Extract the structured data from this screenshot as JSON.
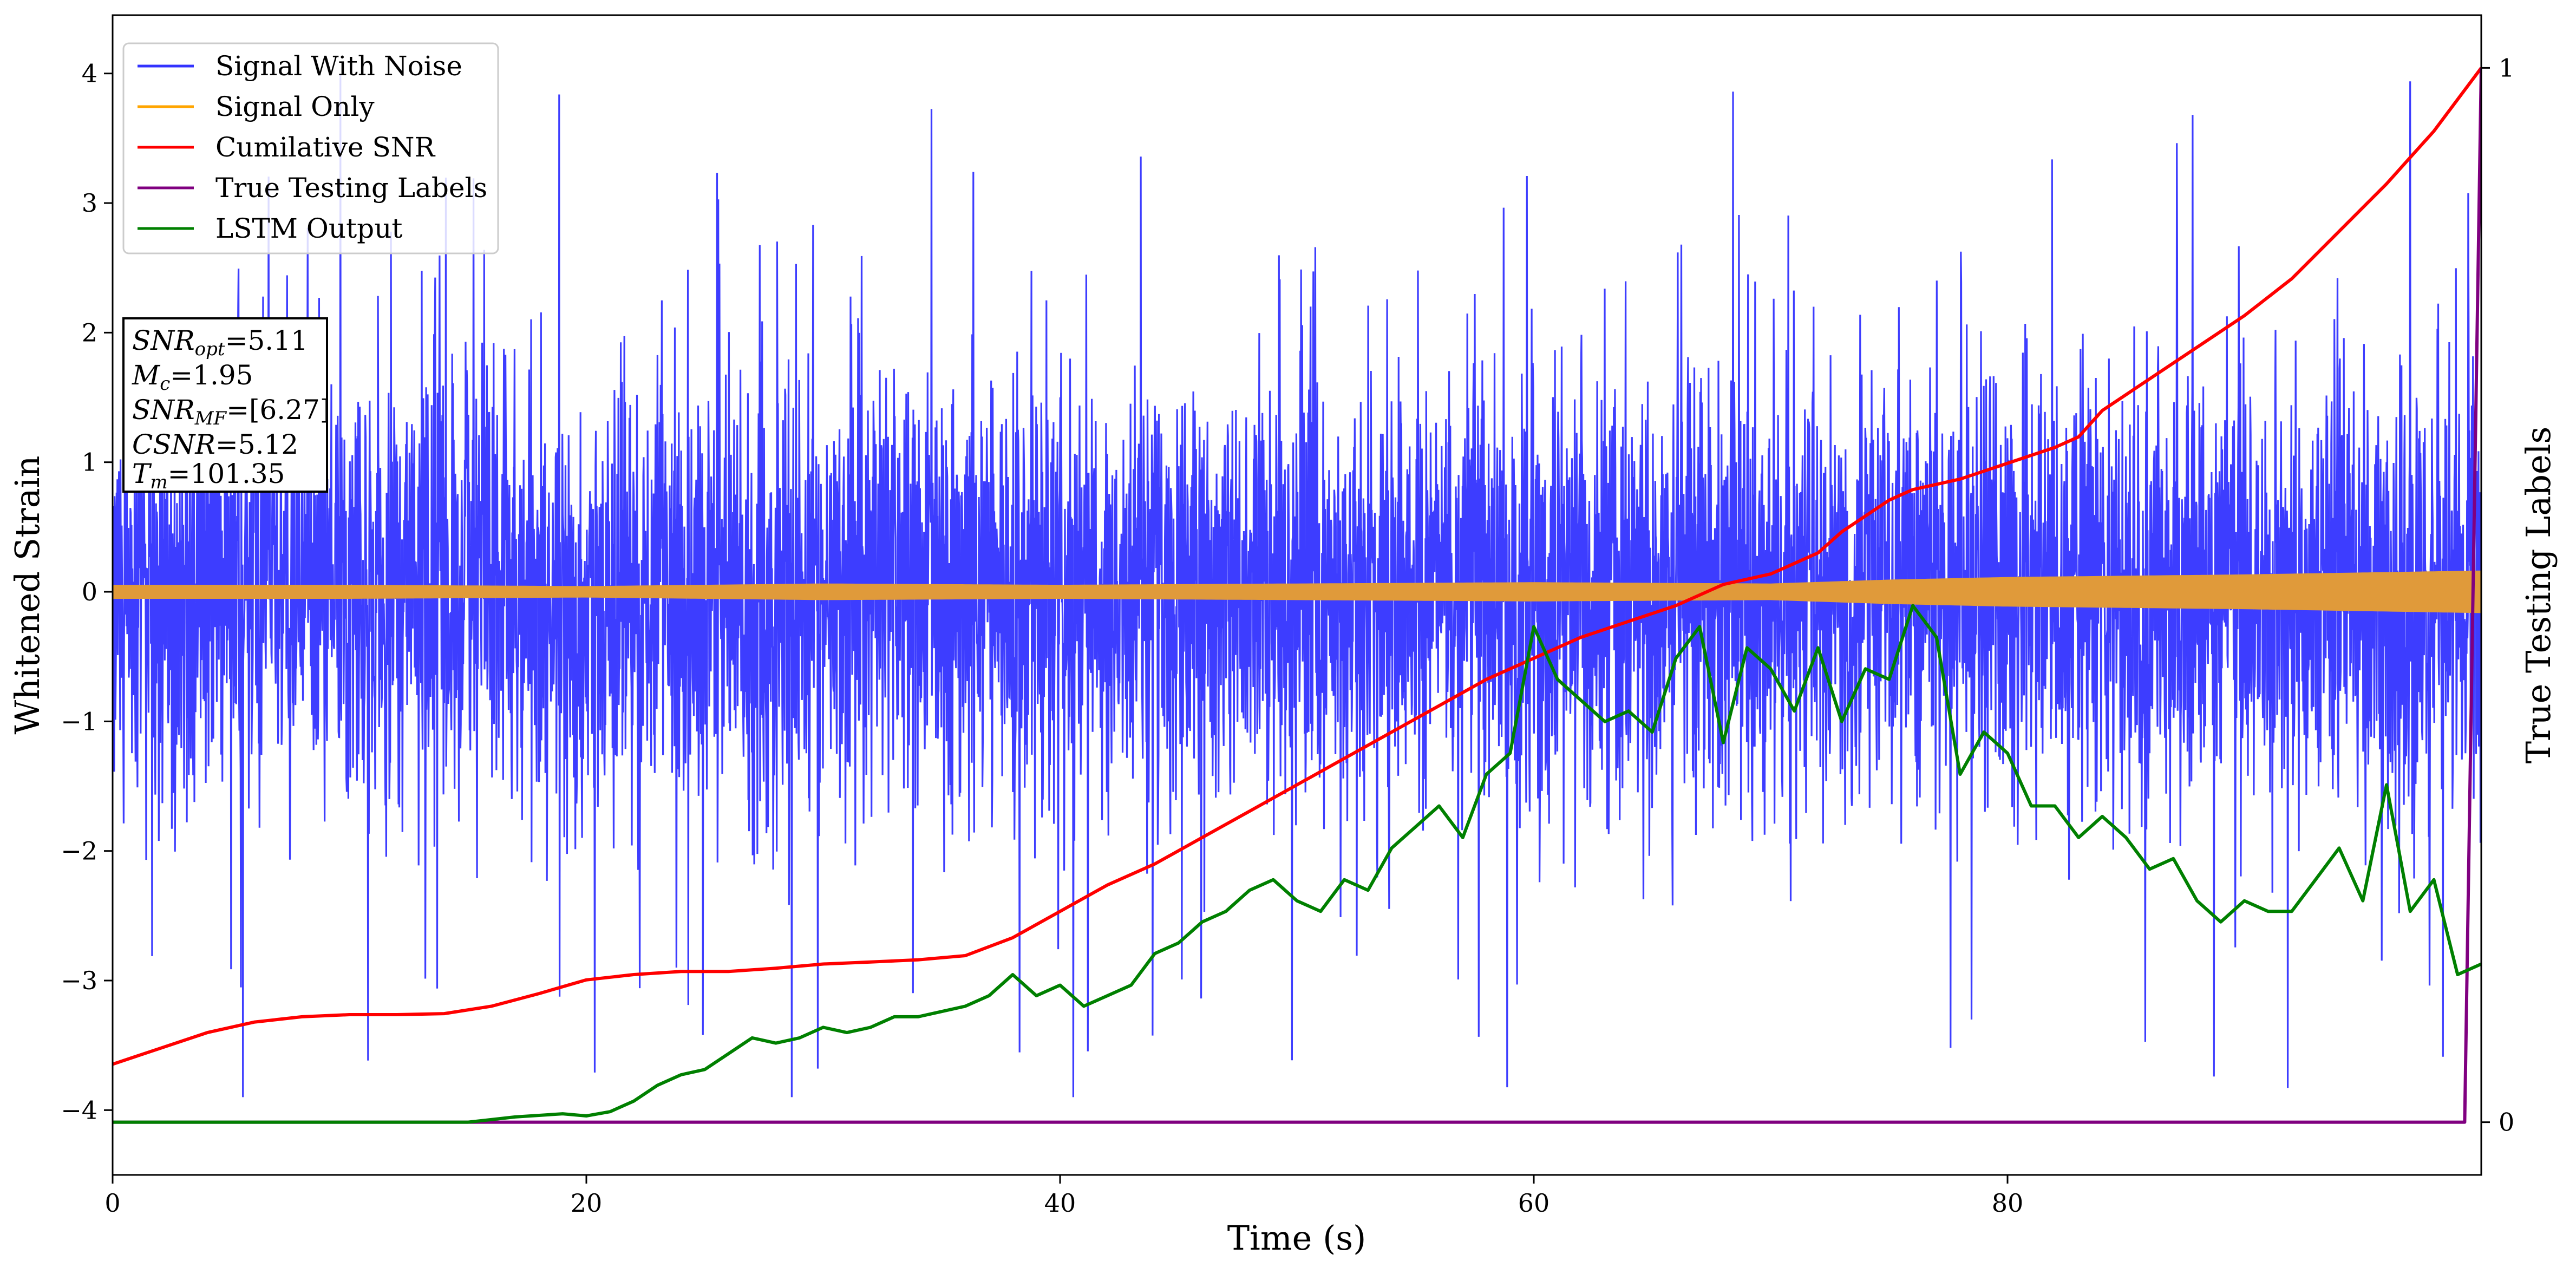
{
  "chart_data": {
    "type": "line",
    "title": "",
    "xlabel": "Time (s)",
    "ylabel": "Whitened Strain",
    "y2label": "True Testing Labels",
    "xlim": [
      0,
      100
    ],
    "ylim": [
      -4.5,
      4.45
    ],
    "y2lim": [
      -0.05,
      1.05
    ],
    "x_ticks": [
      0,
      20,
      40,
      60,
      80
    ],
    "y_ticks": [
      -4,
      -3,
      -2,
      -1,
      0,
      1,
      2,
      3,
      4
    ],
    "y2_ticks": [
      0,
      1
    ],
    "grid": false,
    "legend_position": "top-left",
    "annotation": {
      "lines": [
        {
          "sym": "SNR",
          "sub": "opt",
          "value": "=5.11"
        },
        {
          "sym": "M",
          "sub": "c",
          "value": "=1.95"
        },
        {
          "sym": "SNR",
          "sub": "MF",
          "value": "=[6.27]"
        },
        {
          "sym": "CSNR",
          "sub": "",
          "value": "=5.12"
        },
        {
          "sym": "T",
          "sub": "m",
          "value": "=101.35"
        }
      ]
    },
    "series": [
      {
        "name": "Signal With Noise",
        "axis": "left",
        "color": "#3333ff",
        "kind": "noise",
        "amplitude_std": 0.85,
        "peak_range": [
          -3.9,
          4.15
        ]
      },
      {
        "name": "Signal Only",
        "axis": "left",
        "color": "#e09a3a",
        "kind": "envelope",
        "x": [
          0,
          10,
          20,
          30,
          40,
          50,
          60,
          70,
          75,
          80,
          90,
          100
        ],
        "values": [
          0.05,
          0.05,
          0.04,
          0.06,
          0.05,
          0.06,
          0.07,
          0.06,
          0.09,
          0.11,
          0.13,
          0.16
        ]
      },
      {
        "name": "Cumilative SNR",
        "axis": "right",
        "color": "#ff0000",
        "x": [
          0,
          2,
          4,
          6,
          8,
          10,
          12,
          14,
          16,
          18,
          20,
          22,
          24,
          26,
          28,
          30,
          32,
          34,
          36,
          38,
          40,
          42,
          44,
          46,
          48,
          50,
          52,
          54,
          56,
          58,
          60,
          62,
          64,
          66,
          68,
          70,
          72,
          73,
          74,
          75,
          76,
          78,
          80,
          82,
          83,
          84,
          86,
          88,
          90,
          92,
          94,
          96,
          98,
          100
        ],
        "values": [
          0.055,
          0.07,
          0.085,
          0.095,
          0.1,
          0.102,
          0.102,
          0.103,
          0.11,
          0.122,
          0.135,
          0.14,
          0.143,
          0.143,
          0.146,
          0.15,
          0.152,
          0.154,
          0.158,
          0.175,
          0.2,
          0.225,
          0.245,
          0.27,
          0.295,
          0.32,
          0.345,
          0.37,
          0.395,
          0.42,
          0.44,
          0.46,
          0.475,
          0.49,
          0.51,
          0.52,
          0.54,
          0.56,
          0.575,
          0.59,
          0.6,
          0.61,
          0.625,
          0.64,
          0.65,
          0.675,
          0.705,
          0.735,
          0.765,
          0.8,
          0.845,
          0.89,
          0.94,
          1.0
        ]
      },
      {
        "name": "True Testing Labels",
        "axis": "right",
        "color": "#800080",
        "x": [
          0,
          99.3,
          100
        ],
        "values": [
          0,
          0,
          1
        ]
      },
      {
        "name": "LSTM Output",
        "axis": "right",
        "color": "#008000",
        "x": [
          0,
          15,
          17,
          19,
          20,
          21,
          22,
          23,
          24,
          25,
          26,
          27,
          28,
          29,
          30,
          31,
          32,
          33,
          34,
          35,
          36,
          37,
          38,
          39,
          40,
          41,
          42,
          43,
          44,
          45,
          46,
          47,
          48,
          49,
          50,
          51,
          52,
          53,
          54,
          55,
          56,
          57,
          58,
          59,
          60,
          61,
          62,
          63,
          64,
          65,
          66,
          67,
          68,
          69,
          70,
          71,
          72,
          73,
          74,
          75,
          76,
          77,
          78,
          79,
          80,
          81,
          82,
          83,
          84,
          85,
          86,
          87,
          88,
          89,
          90,
          91,
          92,
          93,
          94,
          95,
          96,
          97,
          98,
          99,
          100
        ],
        "values": [
          0,
          0,
          0.005,
          0.008,
          0.006,
          0.01,
          0.02,
          0.035,
          0.045,
          0.05,
          0.065,
          0.08,
          0.075,
          0.08,
          0.09,
          0.085,
          0.09,
          0.1,
          0.1,
          0.105,
          0.11,
          0.12,
          0.14,
          0.12,
          0.13,
          0.11,
          0.12,
          0.13,
          0.16,
          0.17,
          0.19,
          0.2,
          0.22,
          0.23,
          0.21,
          0.2,
          0.23,
          0.22,
          0.26,
          0.28,
          0.3,
          0.27,
          0.33,
          0.35,
          0.47,
          0.42,
          0.4,
          0.38,
          0.39,
          0.37,
          0.44,
          0.47,
          0.36,
          0.45,
          0.43,
          0.39,
          0.45,
          0.38,
          0.43,
          0.42,
          0.49,
          0.46,
          0.33,
          0.37,
          0.35,
          0.3,
          0.3,
          0.27,
          0.29,
          0.27,
          0.24,
          0.25,
          0.21,
          0.19,
          0.21,
          0.2,
          0.2,
          0.23,
          0.26,
          0.21,
          0.32,
          0.2,
          0.23,
          0.14,
          0.15
        ]
      }
    ]
  }
}
